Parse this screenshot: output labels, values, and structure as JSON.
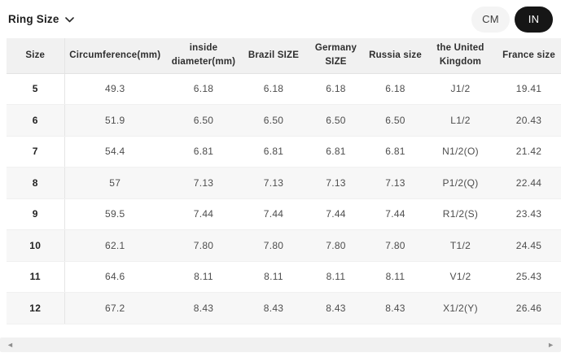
{
  "header": {
    "ring_size_label": "Ring Size"
  },
  "unit_toggle": {
    "cm_label": "CM",
    "in_label": "IN",
    "selected": "IN"
  },
  "table": {
    "columns": [
      "Size",
      "Circumference(mm)",
      "inside diameter(mm)",
      "Brazil SIZE",
      "Germany SIZE",
      "Russia size",
      "the United Kingdom",
      "France size"
    ],
    "rows": [
      [
        "5",
        "49.3",
        "6.18",
        "6.18",
        "6.18",
        "6.18",
        "J1/2",
        "19.41"
      ],
      [
        "6",
        "51.9",
        "6.50",
        "6.50",
        "6.50",
        "6.50",
        "L1/2",
        "20.43"
      ],
      [
        "7",
        "54.4",
        "6.81",
        "6.81",
        "6.81",
        "6.81",
        "N1/2(O)",
        "21.42"
      ],
      [
        "8",
        "57",
        "7.13",
        "7.13",
        "7.13",
        "7.13",
        "P1/2(Q)",
        "22.44"
      ],
      [
        "9",
        "59.5",
        "7.44",
        "7.44",
        "7.44",
        "7.44",
        "R1/2(S)",
        "23.43"
      ],
      [
        "10",
        "62.1",
        "7.80",
        "7.80",
        "7.80",
        "7.80",
        "T1/2",
        "24.45"
      ],
      [
        "11",
        "64.6",
        "8.11",
        "8.11",
        "8.11",
        "8.11",
        "V1/2",
        "25.43"
      ],
      [
        "12",
        "67.2",
        "8.43",
        "8.43",
        "8.43",
        "8.43",
        "X1/2(Y)",
        "26.46"
      ]
    ]
  },
  "scrollbar": {
    "left_arrow": "◄",
    "right_arrow": "►"
  },
  "colors": {
    "toggle_active_bg": "#161616",
    "toggle_active_text": "#ffffff",
    "toggle_inactive_bg": "#f4f4f4",
    "table_header_bg": "#f1f1f1",
    "alt_row_bg": "#f7f7f7"
  }
}
